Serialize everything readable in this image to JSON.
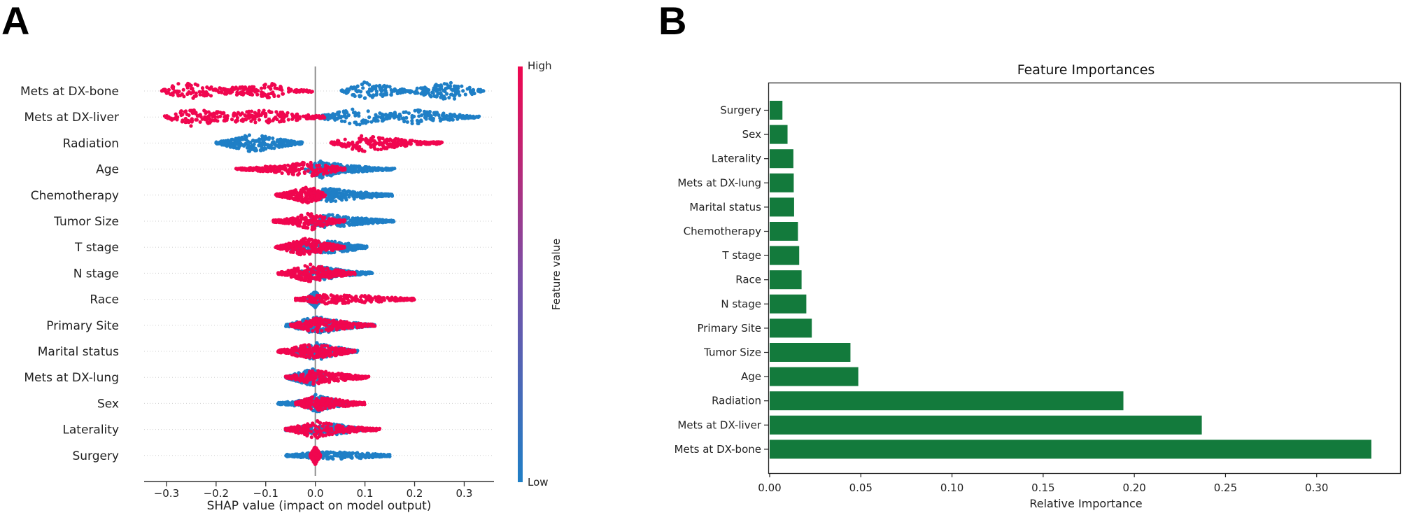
{
  "panels": {
    "a_label": "A",
    "b_label": "B"
  },
  "colors": {
    "low": "#1f7fc6",
    "high": "#f0064f",
    "bar": "#137a3c",
    "text": "#222222"
  },
  "chart_data": [
    {
      "type": "scatter",
      "subtype": "shap-beeswarm",
      "title": "",
      "xlabel": "SHAP value (impact on model output)",
      "ylabel": "",
      "xlim": [
        -0.345,
        0.36
      ],
      "xticks": [
        -0.3,
        -0.2,
        -0.1,
        0.0,
        0.1,
        0.2,
        0.3
      ],
      "xtick_labels": [
        "−0.3",
        "−0.2",
        "−0.1",
        "0.0",
        "0.1",
        "0.2",
        "0.3"
      ],
      "vertical_reference_line": 0.0,
      "colorbar": {
        "label": "Feature value",
        "high_label": "High",
        "low_label": "Low"
      },
      "features": [
        {
          "name": "Mets at DX-bone",
          "low": [
            [
              0.05,
              0.0
            ],
            [
              0.1,
              1.0
            ],
            [
              0.185,
              0.1
            ],
            [
              0.27,
              1.0
            ],
            [
              0.34,
              0.05
            ]
          ],
          "high": [
            [
              -0.31,
              0.05
            ],
            [
              -0.27,
              1.0
            ],
            [
              -0.19,
              0.4
            ],
            [
              -0.13,
              0.45
            ],
            [
              -0.09,
              0.85
            ],
            [
              -0.04,
              0.1
            ],
            [
              -0.005,
              0.05
            ]
          ]
        },
        {
          "name": "Mets at DX-liver",
          "low": [
            [
              0.0,
              0.05
            ],
            [
              0.08,
              0.9
            ],
            [
              0.15,
              0.4
            ],
            [
              0.2,
              0.8
            ],
            [
              0.28,
              0.3
            ],
            [
              0.33,
              0.05
            ]
          ],
          "high": [
            [
              -0.305,
              0.05
            ],
            [
              -0.25,
              1.0
            ],
            [
              -0.18,
              0.45
            ],
            [
              -0.1,
              0.75
            ],
            [
              -0.03,
              0.3
            ],
            [
              0.02,
              0.1
            ]
          ]
        },
        {
          "name": "Radiation",
          "low": [
            [
              -0.2,
              0.05
            ],
            [
              -0.13,
              1.0
            ],
            [
              -0.06,
              0.35
            ],
            [
              -0.025,
              0.05
            ]
          ],
          "high": [
            [
              0.03,
              0.1
            ],
            [
              0.1,
              1.0
            ],
            [
              0.17,
              0.4
            ],
            [
              0.24,
              0.05
            ],
            [
              0.255,
              0.05
            ]
          ]
        },
        {
          "name": "Age",
          "low": [
            [
              -0.02,
              0.1
            ],
            [
              0.01,
              1.0
            ],
            [
              0.06,
              0.4
            ],
            [
              0.12,
              0.2
            ],
            [
              0.16,
              0.05
            ]
          ],
          "high": [
            [
              -0.16,
              0.05
            ],
            [
              -0.12,
              0.2
            ],
            [
              -0.06,
              0.5
            ],
            [
              -0.01,
              0.8
            ],
            [
              0.03,
              0.4
            ],
            [
              0.06,
              0.1
            ]
          ]
        },
        {
          "name": "Chemotherapy",
          "low": [
            [
              0.0,
              0.1
            ],
            [
              0.02,
              0.8
            ],
            [
              0.08,
              0.4
            ],
            [
              0.155,
              0.05
            ]
          ],
          "high": [
            [
              -0.08,
              0.05
            ],
            [
              -0.05,
              0.4
            ],
            [
              -0.01,
              1.0
            ],
            [
              0.02,
              0.1
            ]
          ]
        },
        {
          "name": "Tumor Size",
          "low": [
            [
              -0.01,
              0.3
            ],
            [
              0.02,
              0.8
            ],
            [
              0.08,
              0.4
            ],
            [
              0.16,
              0.05
            ]
          ],
          "high": [
            [
              -0.085,
              0.05
            ],
            [
              -0.04,
              0.4
            ],
            [
              -0.01,
              1.0
            ],
            [
              0.03,
              0.3
            ],
            [
              0.06,
              0.05
            ]
          ]
        },
        {
          "name": "T stage",
          "low": [
            [
              -0.07,
              0.05
            ],
            [
              -0.01,
              0.5
            ],
            [
              0.03,
              0.7
            ],
            [
              0.07,
              0.4
            ],
            [
              0.105,
              0.05
            ]
          ],
          "high": [
            [
              -0.08,
              0.05
            ],
            [
              -0.02,
              1.0
            ],
            [
              0.03,
              0.4
            ],
            [
              0.06,
              0.05
            ]
          ]
        },
        {
          "name": "N stage",
          "low": [
            [
              -0.03,
              0.2
            ],
            [
              0.01,
              0.8
            ],
            [
              0.06,
              0.3
            ],
            [
              0.115,
              0.05
            ]
          ],
          "high": [
            [
              -0.075,
              0.05
            ],
            [
              -0.01,
              1.0
            ],
            [
              0.03,
              0.5
            ],
            [
              0.08,
              0.1
            ]
          ]
        },
        {
          "name": "Race",
          "low": [
            [
              -0.015,
              0.2
            ],
            [
              0.0,
              0.9
            ],
            [
              0.01,
              0.2
            ]
          ],
          "high": [
            [
              -0.04,
              0.05
            ],
            [
              0.01,
              0.5
            ],
            [
              0.1,
              0.4
            ],
            [
              0.2,
              0.05
            ]
          ]
        },
        {
          "name": "Primary Site",
          "low": [
            [
              -0.06,
              0.05
            ],
            [
              0.0,
              1.0
            ],
            [
              0.06,
              0.4
            ],
            [
              0.12,
              0.05
            ]
          ],
          "high": [
            [
              -0.05,
              0.1
            ],
            [
              0.0,
              0.8
            ],
            [
              0.06,
              0.4
            ],
            [
              0.12,
              0.05
            ]
          ]
        },
        {
          "name": "Marital status",
          "low": [
            [
              -0.05,
              0.1
            ],
            [
              0.0,
              1.0
            ],
            [
              0.05,
              0.4
            ],
            [
              0.085,
              0.05
            ]
          ],
          "high": [
            [
              -0.075,
              0.1
            ],
            [
              -0.01,
              0.8
            ],
            [
              0.04,
              0.5
            ],
            [
              0.08,
              0.05
            ]
          ]
        },
        {
          "name": "Mets at DX-lung",
          "low": [
            [
              -0.06,
              0.05
            ],
            [
              -0.005,
              1.0
            ],
            [
              0.02,
              0.1
            ]
          ],
          "high": [
            [
              -0.06,
              0.05
            ],
            [
              0.0,
              0.8
            ],
            [
              0.04,
              0.5
            ],
            [
              0.108,
              0.05
            ]
          ]
        },
        {
          "name": "Sex",
          "low": [
            [
              -0.075,
              0.05
            ],
            [
              -0.02,
              0.4
            ],
            [
              0.0,
              1.0
            ],
            [
              0.04,
              0.4
            ],
            [
              0.08,
              0.05
            ]
          ],
          "high": [
            [
              -0.04,
              0.1
            ],
            [
              0.0,
              0.8
            ],
            [
              0.05,
              0.4
            ],
            [
              0.1,
              0.05
            ]
          ]
        },
        {
          "name": "Laterality",
          "low": [
            [
              -0.06,
              0.05
            ],
            [
              -0.01,
              0.5
            ],
            [
              0.04,
              0.6
            ],
            [
              0.1,
              0.05
            ]
          ],
          "high": [
            [
              -0.06,
              0.05
            ],
            [
              0.0,
              1.0
            ],
            [
              0.05,
              0.4
            ],
            [
              0.13,
              0.05
            ]
          ]
        },
        {
          "name": "Surgery",
          "low": [
            [
              -0.06,
              0.05
            ],
            [
              -0.01,
              0.3
            ],
            [
              0.03,
              0.4
            ],
            [
              0.1,
              0.3
            ],
            [
              0.15,
              0.05
            ]
          ],
          "high": [
            [
              -0.01,
              0.1
            ],
            [
              0.0,
              1.0
            ],
            [
              0.01,
              0.1
            ]
          ]
        }
      ]
    },
    {
      "type": "bar",
      "orientation": "horizontal",
      "title": "Feature Importances",
      "xlabel": "Relative Importance",
      "ylabel": "",
      "xlim": [
        0,
        0.345
      ],
      "xticks": [
        0.0,
        0.05,
        0.1,
        0.15,
        0.2,
        0.25,
        0.3
      ],
      "xtick_labels": [
        "0.00",
        "0.05",
        "0.10",
        "0.15",
        "0.20",
        "0.25",
        "0.30"
      ],
      "categories": [
        "Surgery",
        "Sex",
        "Laterality",
        "Mets at DX-lung",
        "Marital status",
        "Chemotherapy",
        "T stage",
        "Race",
        "N stage",
        "Primary Site",
        "Tumor Size",
        "Age",
        "Radiation",
        "Mets at DX-liver",
        "Mets at DX-bone"
      ],
      "values": [
        0.007,
        0.0098,
        0.013,
        0.0132,
        0.0134,
        0.0155,
        0.0162,
        0.0175,
        0.0201,
        0.0231,
        0.0443,
        0.0486,
        0.194,
        0.237,
        0.33
      ]
    }
  ]
}
